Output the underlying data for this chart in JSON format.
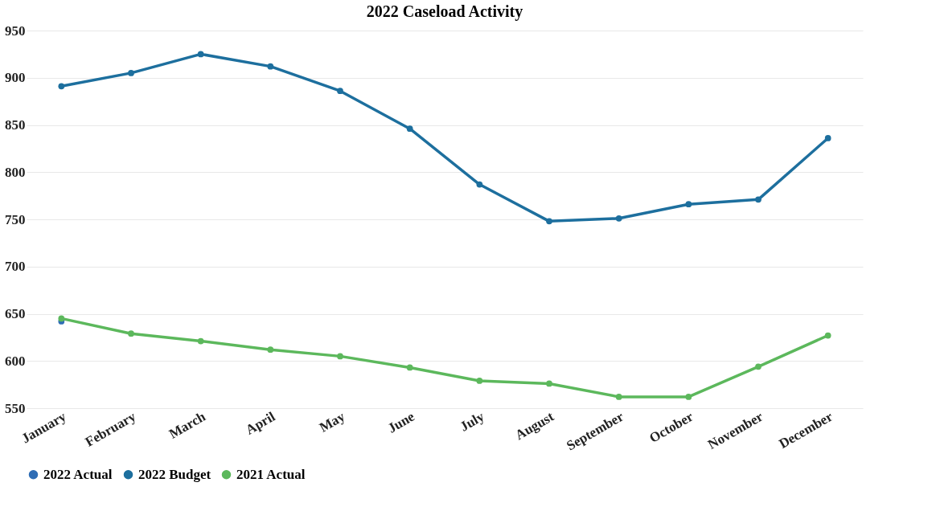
{
  "chart_data": {
    "type": "line",
    "title": "2022 Caseload Activity",
    "categories": [
      "January",
      "February",
      "March",
      "April",
      "May",
      "June",
      "July",
      "August",
      "September",
      "October",
      "November",
      "December"
    ],
    "series": [
      {
        "name": "2022 Actual",
        "color": "#2f6db5",
        "values": [
          642,
          null,
          null,
          null,
          null,
          null,
          null,
          null,
          null,
          null,
          null,
          null
        ]
      },
      {
        "name": "2022 Budget",
        "color": "#1d6f9e",
        "values": [
          891,
          905,
          925,
          912,
          886,
          846,
          787,
          748,
          751,
          766,
          771,
          836
        ]
      },
      {
        "name": "2021 Actual",
        "color": "#5cb85c",
        "values": [
          645,
          629,
          621,
          612,
          605,
          593,
          579,
          576,
          562,
          562,
          594,
          627
        ]
      }
    ],
    "ylim": [
      550,
      950
    ],
    "yticks": [
      550,
      600,
      650,
      700,
      750,
      800,
      850,
      900,
      950
    ],
    "grid": "y",
    "legend": "bottom",
    "marker": "circle",
    "line_style": "solid"
  }
}
